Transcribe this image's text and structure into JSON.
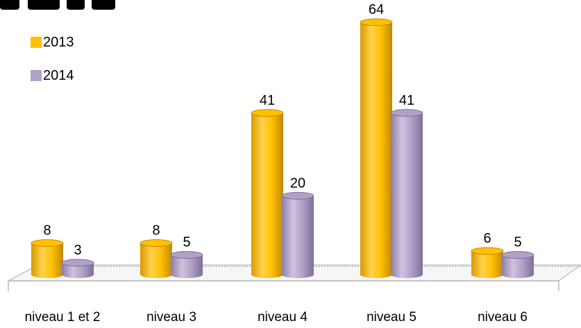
{
  "chart_data": {
    "type": "bar",
    "title": "",
    "xlabel": "",
    "ylabel": "",
    "categories": [
      "niveau 1 et 2",
      "niveau 3",
      "niveau 4",
      "niveau 5",
      "niveau 6"
    ],
    "series": [
      {
        "name": "2013",
        "values": [
          8,
          8,
          41,
          64,
          6
        ],
        "color": "#FFC000"
      },
      {
        "name": "2014",
        "values": [
          3,
          5,
          20,
          41,
          5
        ],
        "color": "#B1A0C7"
      }
    ],
    "ylim": [
      0,
      64
    ],
    "style": "3D cylinder",
    "legend_position": "top-left",
    "data_labels": true,
    "grid": false
  }
}
